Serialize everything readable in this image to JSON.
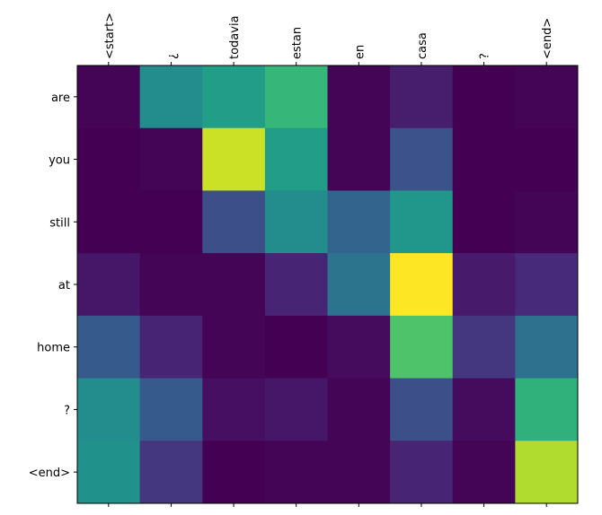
{
  "chart_data": {
    "type": "heatmap",
    "title": "",
    "xlabel": "",
    "ylabel": "",
    "x_ticks": [
      "<start>",
      "¿",
      "todavia",
      "estan",
      "en",
      "casa",
      "?",
      "<end>"
    ],
    "y_ticks": [
      "are",
      "you",
      "still",
      "at",
      "home",
      "?",
      "<end>"
    ],
    "colormap": "viridis",
    "x_tick_position": "top",
    "x_tick_rotation": "vertical",
    "grid": false,
    "values": [
      [
        0.01,
        0.48,
        0.55,
        0.66,
        0.01,
        0.08,
        0.0,
        0.01
      ],
      [
        0.0,
        0.01,
        0.92,
        0.55,
        0.01,
        0.25,
        0.0,
        0.0
      ],
      [
        0.0,
        0.0,
        0.24,
        0.48,
        0.32,
        0.52,
        0.0,
        0.01
      ],
      [
        0.06,
        0.01,
        0.01,
        0.1,
        0.38,
        1.0,
        0.07,
        0.12
      ],
      [
        0.28,
        0.1,
        0.01,
        0.0,
        0.03,
        0.72,
        0.16,
        0.37
      ],
      [
        0.48,
        0.28,
        0.04,
        0.06,
        0.01,
        0.24,
        0.03,
        0.64
      ],
      [
        0.5,
        0.16,
        0.0,
        0.01,
        0.01,
        0.1,
        0.01,
        0.88
      ]
    ]
  }
}
